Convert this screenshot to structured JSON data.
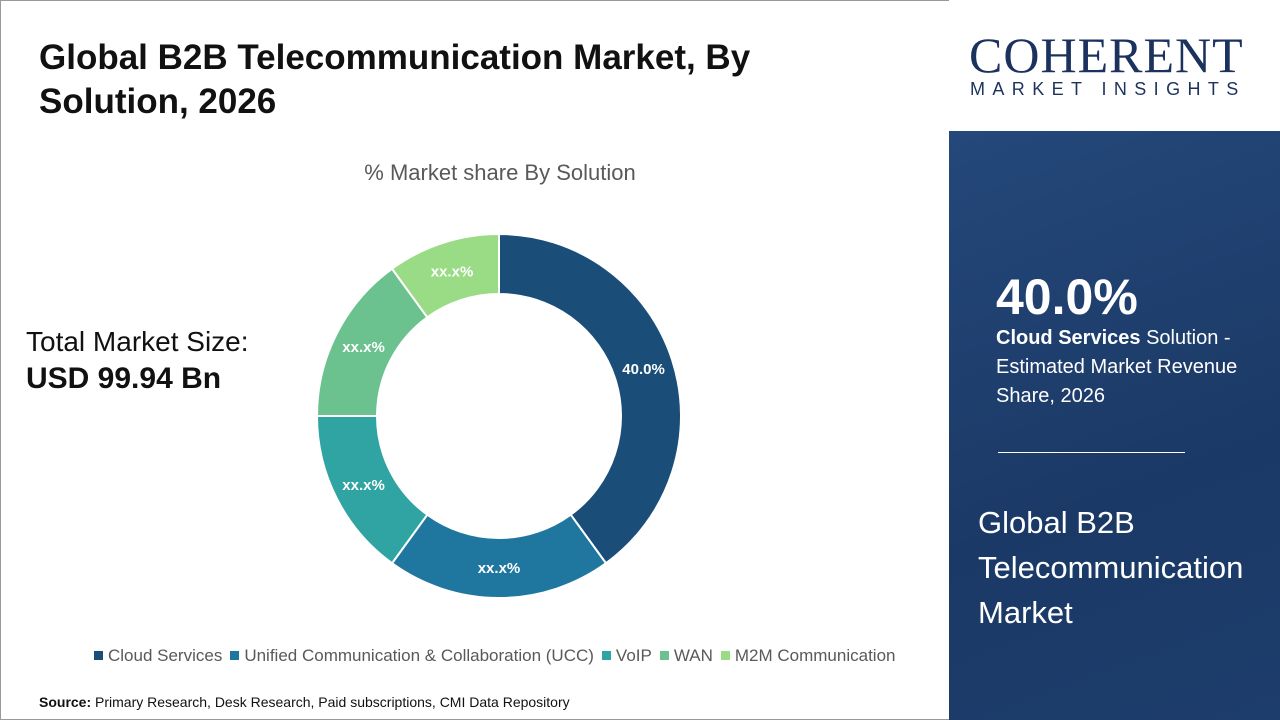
{
  "header": {
    "title": "Global B2B Telecommunication Market, By Solution, 2026"
  },
  "market_size": {
    "label": "Total Market Size:",
    "value": "USD 99.94 Bn"
  },
  "source": {
    "label": "Source:",
    "text": " Primary Research, Desk Research, Paid subscriptions, CMI Data Repository"
  },
  "logo": {
    "name": "COHERENT",
    "tagline": "MARKET INSIGHTS"
  },
  "highlight": {
    "value": "40.0%",
    "segment": "Cloud Services",
    "text": " Solution - Estimated Market Revenue Share, 2026"
  },
  "side_title": "Global B2B Telecommunication Market",
  "chart_data": {
    "type": "donut",
    "title": "% Market share By Solution",
    "legend_position": "bottom",
    "categories": [
      "Cloud Services",
      "Unified Communication & Collaboration (UCC)",
      "VoIP",
      "WAN",
      "M2M Communication"
    ],
    "values": [
      40,
      20,
      15,
      15,
      10
    ],
    "data_labels": [
      "40.0%",
      "xx.x%",
      "xx.x%",
      "xx.x%",
      "xx.x%"
    ],
    "colors": [
      "#1a4e78",
      "#1f77a0",
      "#30a3a3",
      "#6cc28e",
      "#9adb85"
    ]
  }
}
